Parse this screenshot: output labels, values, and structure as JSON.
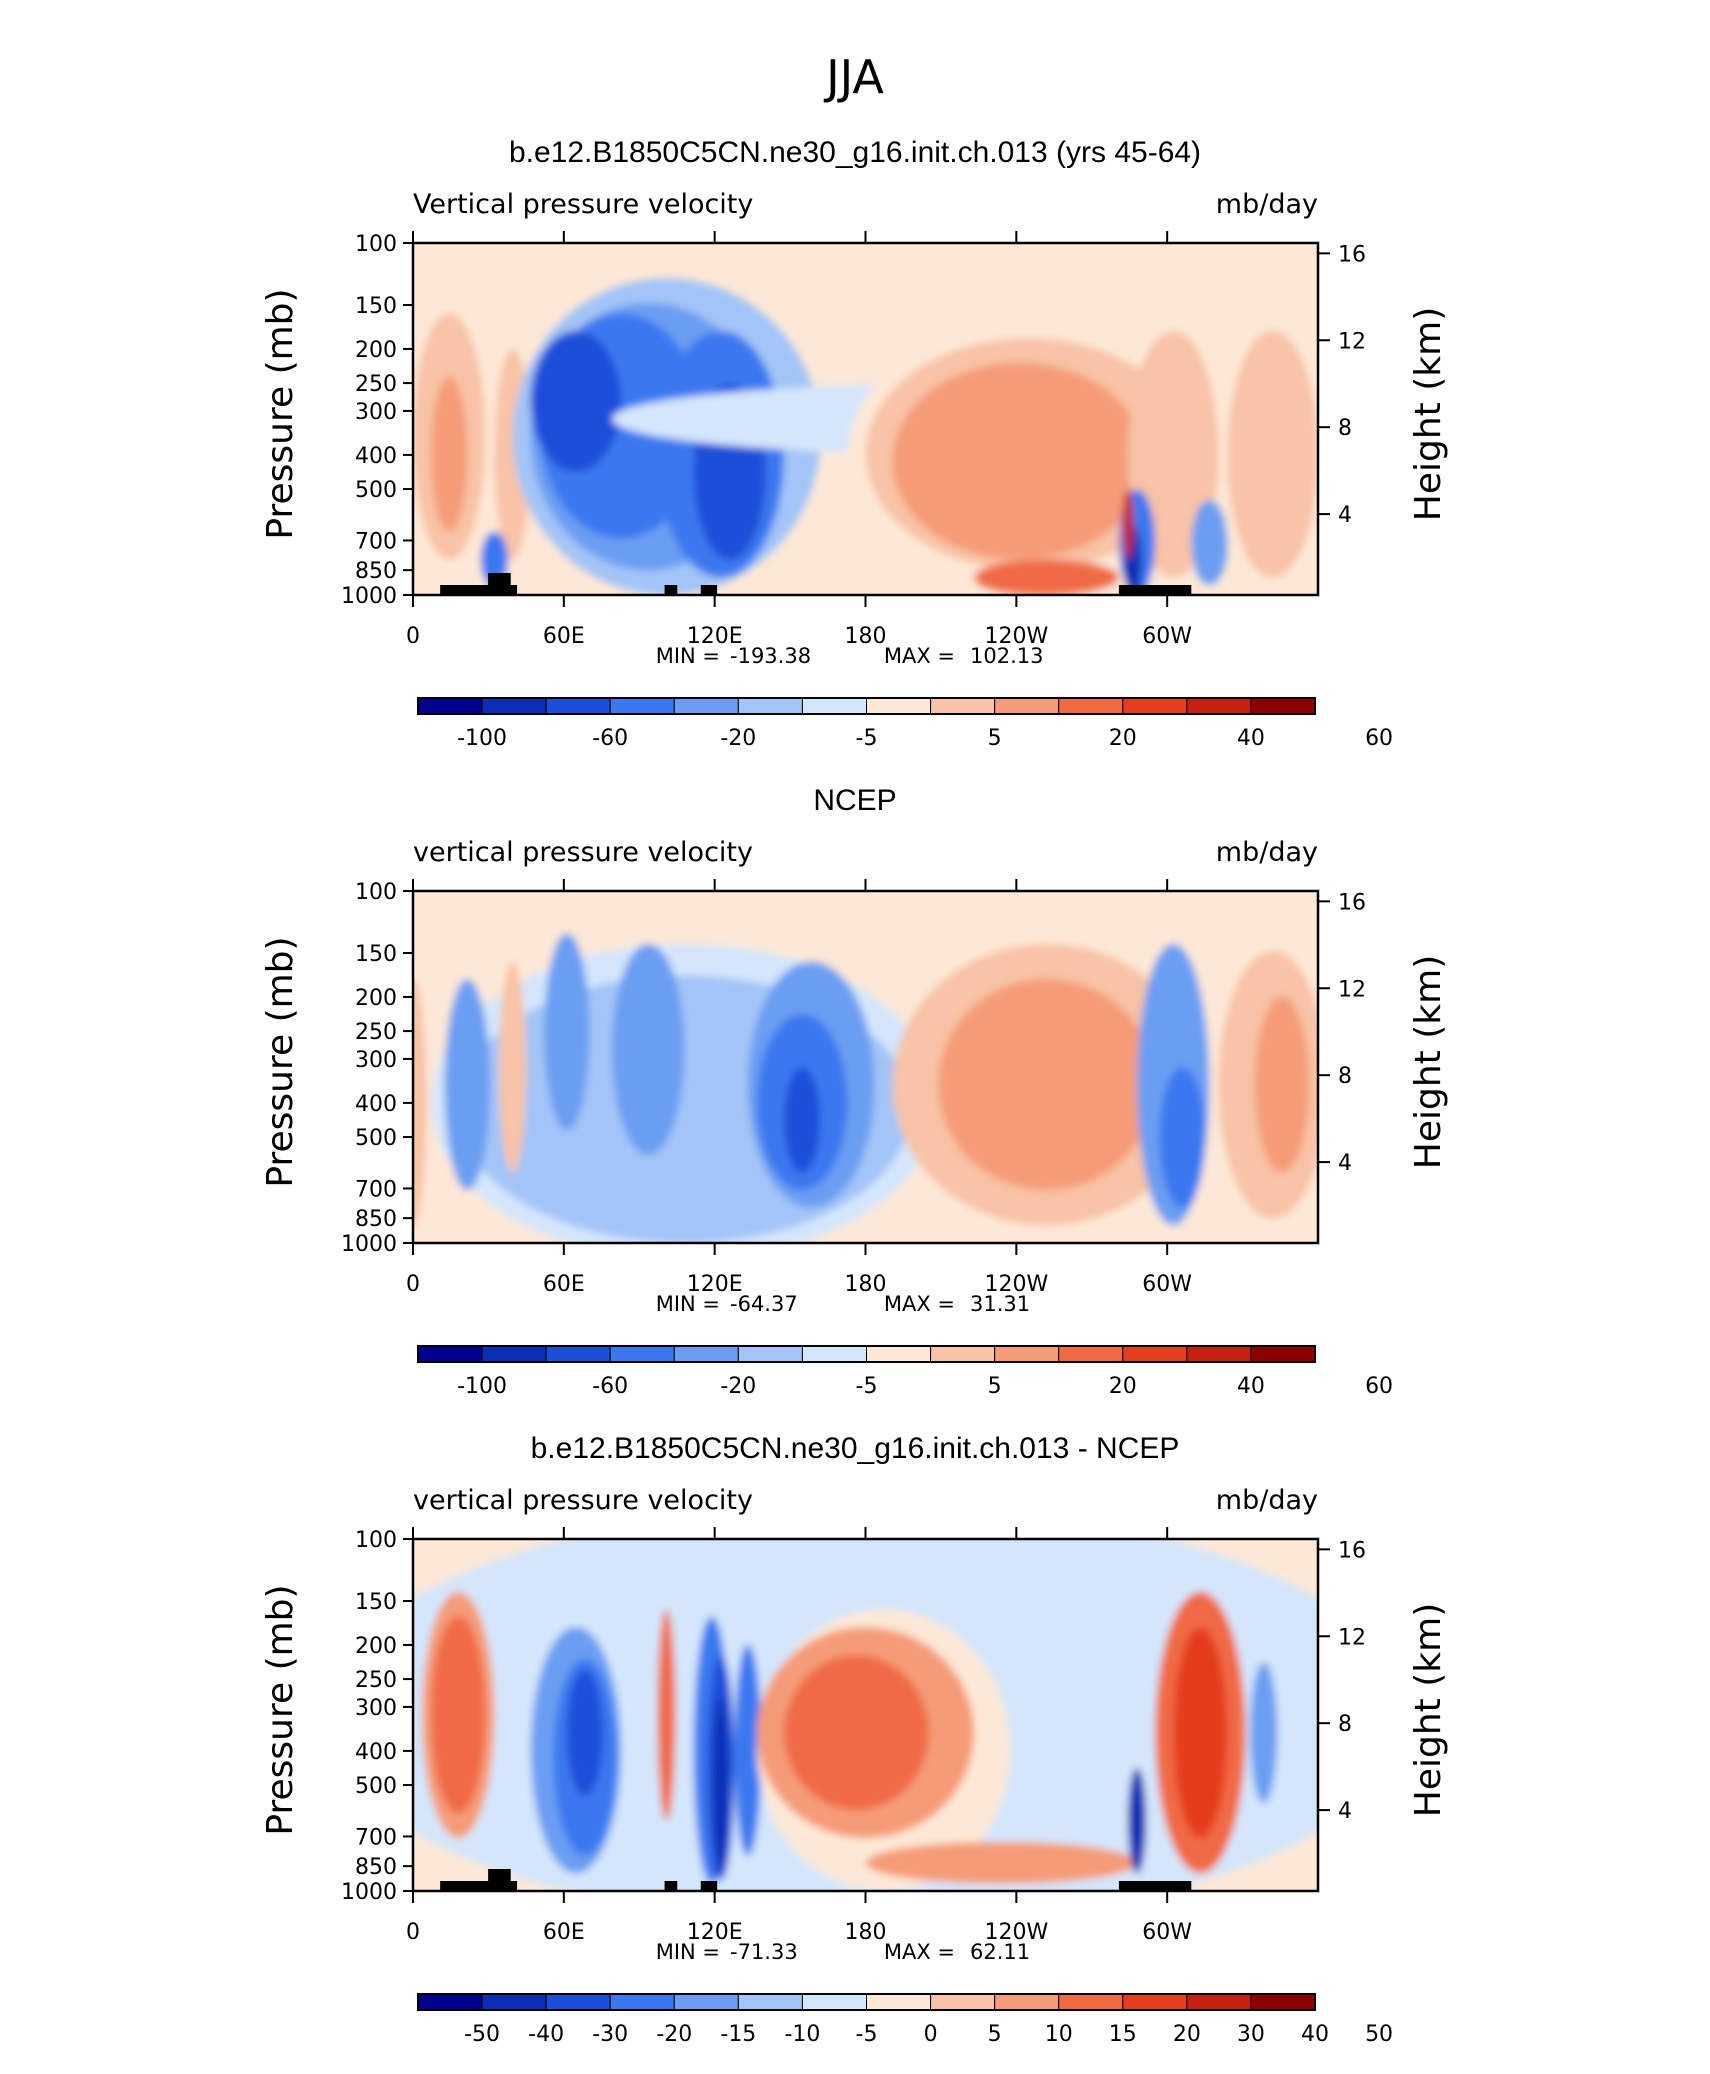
{
  "figure_title": "JJA",
  "chart_data": [
    {
      "type": "heatmap",
      "title": "b.e12.B1850C5CN.ne30_g16.init.ch.013 (yrs 45-64)",
      "subtitle_left": "Vertical pressure velocity",
      "subtitle_right": "mb/day",
      "ylabel": "Pressure (mb)",
      "y2label": "Height (km)",
      "y_ticks": [
        "100",
        "150",
        "200",
        "250",
        "300",
        "400",
        "500",
        "700",
        "850",
        "1000"
      ],
      "y2_ticks": [
        "16",
        "12",
        "8",
        "4"
      ],
      "x_ticks": [
        "0",
        "60E",
        "120E",
        "180",
        "120W",
        "60W"
      ],
      "stats": {
        "min_label": "MIN =",
        "min": "-193.38",
        "max_label": "MAX =",
        "max": "102.13"
      },
      "colorbar_labels": [
        "-100",
        "-60",
        "-20",
        "-5",
        "5",
        "20",
        "40",
        "60"
      ]
    },
    {
      "type": "heatmap",
      "title": "NCEP",
      "subtitle_left": "vertical pressure velocity",
      "subtitle_right": "mb/day",
      "ylabel": "Pressure (mb)",
      "y2label": "Height (km)",
      "y_ticks": [
        "100",
        "150",
        "200",
        "250",
        "300",
        "400",
        "500",
        "700",
        "850",
        "1000"
      ],
      "y2_ticks": [
        "16",
        "12",
        "8",
        "4"
      ],
      "x_ticks": [
        "0",
        "60E",
        "120E",
        "180",
        "120W",
        "60W"
      ],
      "stats": {
        "min_label": "MIN =",
        "min": "-64.37",
        "max_label": "MAX =",
        "max": "31.31"
      },
      "colorbar_labels": [
        "-100",
        "-60",
        "-20",
        "-5",
        "5",
        "20",
        "40",
        "60"
      ]
    },
    {
      "type": "heatmap",
      "title": "b.e12.B1850C5CN.ne30_g16.init.ch.013 - NCEP",
      "subtitle_left": "vertical pressure velocity",
      "subtitle_right": "mb/day",
      "ylabel": "Pressure (mb)",
      "y2label": "Height (km)",
      "y_ticks": [
        "100",
        "150",
        "200",
        "250",
        "300",
        "400",
        "500",
        "700",
        "850",
        "1000"
      ],
      "y2_ticks": [
        "16",
        "12",
        "8",
        "4"
      ],
      "x_ticks": [
        "0",
        "60E",
        "120E",
        "180",
        "120W",
        "60W"
      ],
      "stats": {
        "min_label": "MIN =",
        "min": "-71.33",
        "max_label": "MAX =",
        "max": "62.11"
      },
      "colorbar_labels": [
        "-50",
        "-40",
        "-30",
        "-20",
        "-15",
        "-10",
        "-5",
        "0",
        "5",
        "10",
        "15",
        "20",
        "30",
        "40",
        "50"
      ]
    }
  ],
  "colors": {
    "palette": [
      "#00008c",
      "#0a2fb4",
      "#1a4fd9",
      "#3a78f0",
      "#6b9ef2",
      "#a3c4f7",
      "#d4e6fb",
      "#fde8d7",
      "#f8c3a6",
      "#f59b77",
      "#f06a44",
      "#e53e1d",
      "#c52010",
      "#8b0000"
    ]
  }
}
